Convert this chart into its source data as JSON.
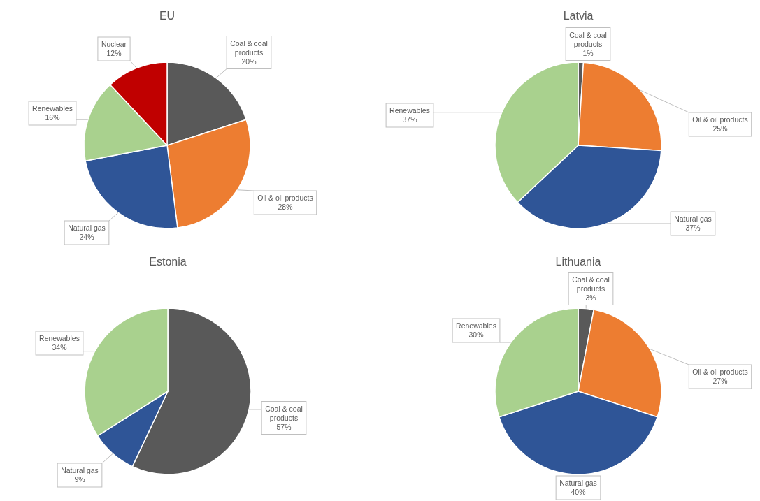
{
  "chart_data": [
    {
      "type": "pie",
      "title": "EU",
      "categories": [
        "Coal & coal products",
        "Oil & oil products",
        "Natural gas",
        "Renewables",
        "Nuclear"
      ],
      "values": [
        20,
        28,
        24,
        16,
        12
      ],
      "colors": [
        "#595959",
        "#ed7d31",
        "#2f5597",
        "#a9d18e",
        "#c00000"
      ],
      "value_labels": [
        "20%",
        "28%",
        "24%",
        "16%",
        "12%"
      ]
    },
    {
      "type": "pie",
      "title": "Latvia",
      "categories": [
        "Coal & coal products",
        "Oil & oil products",
        "Natural gas",
        "Renewables"
      ],
      "values": [
        1,
        25,
        37,
        37
      ],
      "colors": [
        "#595959",
        "#ed7d31",
        "#2f5597",
        "#a9d18e"
      ],
      "value_labels": [
        "1%",
        "25%",
        "37%",
        "37%"
      ]
    },
    {
      "type": "pie",
      "title": "Estonia",
      "categories": [
        "Coal & coal products",
        "Natural gas",
        "Renewables"
      ],
      "values": [
        57,
        9,
        34
      ],
      "colors": [
        "#595959",
        "#2f5597",
        "#a9d18e"
      ],
      "value_labels": [
        "57%",
        "9%",
        "34%"
      ]
    },
    {
      "type": "pie",
      "title": "Lithuania",
      "categories": [
        "Coal & coal products",
        "Oil & oil products",
        "Natural gas",
        "Renewables"
      ],
      "values": [
        3,
        27,
        40,
        30
      ],
      "colors": [
        "#595959",
        "#ed7d31",
        "#2f5597",
        "#a9d18e"
      ],
      "value_labels": [
        "3%",
        "27%",
        "40%",
        "30%"
      ]
    }
  ]
}
